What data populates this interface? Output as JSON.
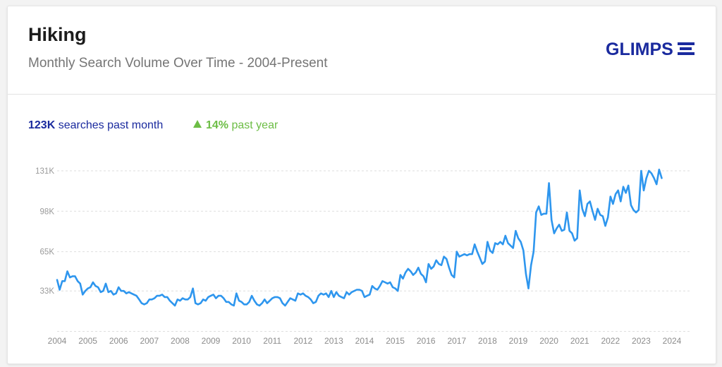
{
  "header": {
    "title": "Hiking",
    "subtitle": "Monthly Search Volume Over Time - 2004-Present",
    "logo": "GLIMPSE"
  },
  "stats": {
    "volume_value": "123K",
    "volume_label": "searches past month",
    "change_icon": "up-triangle-icon",
    "change_value": "14%",
    "change_label": "past year"
  },
  "colors": {
    "line": "#2e96ee",
    "brand": "#1a2a9e",
    "positive": "#6cbd45"
  },
  "chart_data": {
    "type": "line",
    "title": "",
    "xlabel": "",
    "ylabel": "",
    "x_start": "2004-01",
    "x_ticks": [
      "2004",
      "2005",
      "2006",
      "2007",
      "2008",
      "2009",
      "2010",
      "2011",
      "2012",
      "2013",
      "2014",
      "2015",
      "2016",
      "2017",
      "2018",
      "2019",
      "2020",
      "2021",
      "2022",
      "2023",
      "2024"
    ],
    "y_ticks": [
      {
        "value": 33000,
        "label": "33K"
      },
      {
        "value": 65000,
        "label": "65K"
      },
      {
        "value": 98000,
        "label": "98K"
      },
      {
        "value": 131000,
        "label": "131K"
      }
    ],
    "ylim": [
      0,
      131000
    ],
    "grid": true,
    "series": [
      {
        "values": [
          42000,
          34000,
          41000,
          41000,
          49000,
          44000,
          45000,
          45000,
          41000,
          39000,
          30000,
          33000,
          35000,
          36000,
          40000,
          37000,
          36000,
          32000,
          33000,
          39000,
          32000,
          33000,
          30000,
          31000,
          36000,
          33000,
          33000,
          31000,
          32000,
          31000,
          30000,
          29000,
          26000,
          23000,
          22000,
          23000,
          26000,
          26000,
          27000,
          29000,
          29000,
          30000,
          28000,
          28000,
          25000,
          23000,
          21000,
          26000,
          25000,
          27000,
          26000,
          26000,
          28000,
          35000,
          23000,
          22000,
          23000,
          26000,
          25000,
          28000,
          29000,
          30000,
          27000,
          29000,
          29000,
          27000,
          24000,
          24000,
          22000,
          21000,
          31000,
          25000,
          24000,
          22000,
          22000,
          24000,
          29000,
          25000,
          22000,
          21000,
          23000,
          26000,
          23000,
          25000,
          27000,
          28000,
          28000,
          27000,
          23000,
          21000,
          24000,
          27000,
          26000,
          25000,
          31000,
          30000,
          31000,
          29000,
          28000,
          26000,
          23000,
          24000,
          29000,
          31000,
          30000,
          31000,
          28000,
          33000,
          28000,
          32000,
          29000,
          28000,
          27000,
          32000,
          30000,
          32000,
          33000,
          34000,
          34000,
          33000,
          28000,
          29000,
          30000,
          37000,
          35000,
          34000,
          37000,
          41000,
          40000,
          39000,
          40000,
          36000,
          35000,
          33000,
          46000,
          43000,
          48000,
          51000,
          49000,
          46000,
          48000,
          52000,
          47000,
          45000,
          40000,
          55000,
          51000,
          53000,
          58000,
          55000,
          54000,
          61000,
          59000,
          52000,
          46000,
          44000,
          65000,
          61000,
          62000,
          63000,
          62000,
          63000,
          63000,
          71000,
          65000,
          60000,
          55000,
          57000,
          73000,
          66000,
          64000,
          72000,
          71000,
          73000,
          71000,
          78000,
          72000,
          70000,
          68000,
          82000,
          76000,
          73000,
          66000,
          47000,
          35000,
          54000,
          65000,
          97000,
          102000,
          95000,
          96000,
          96000,
          121000,
          91000,
          80000,
          84000,
          87000,
          82000,
          83000,
          97000,
          82000,
          80000,
          74000,
          76000,
          115000,
          100000,
          94000,
          104000,
          106000,
          98000,
          91000,
          100000,
          95000,
          94000,
          86000,
          93000,
          110000,
          104000,
          112000,
          115000,
          106000,
          118000,
          113000,
          119000,
          103000,
          99000,
          97000,
          99000,
          131000,
          115000,
          125000,
          131000,
          129000,
          125000,
          120000,
          132000,
          125000
        ]
      }
    ]
  }
}
